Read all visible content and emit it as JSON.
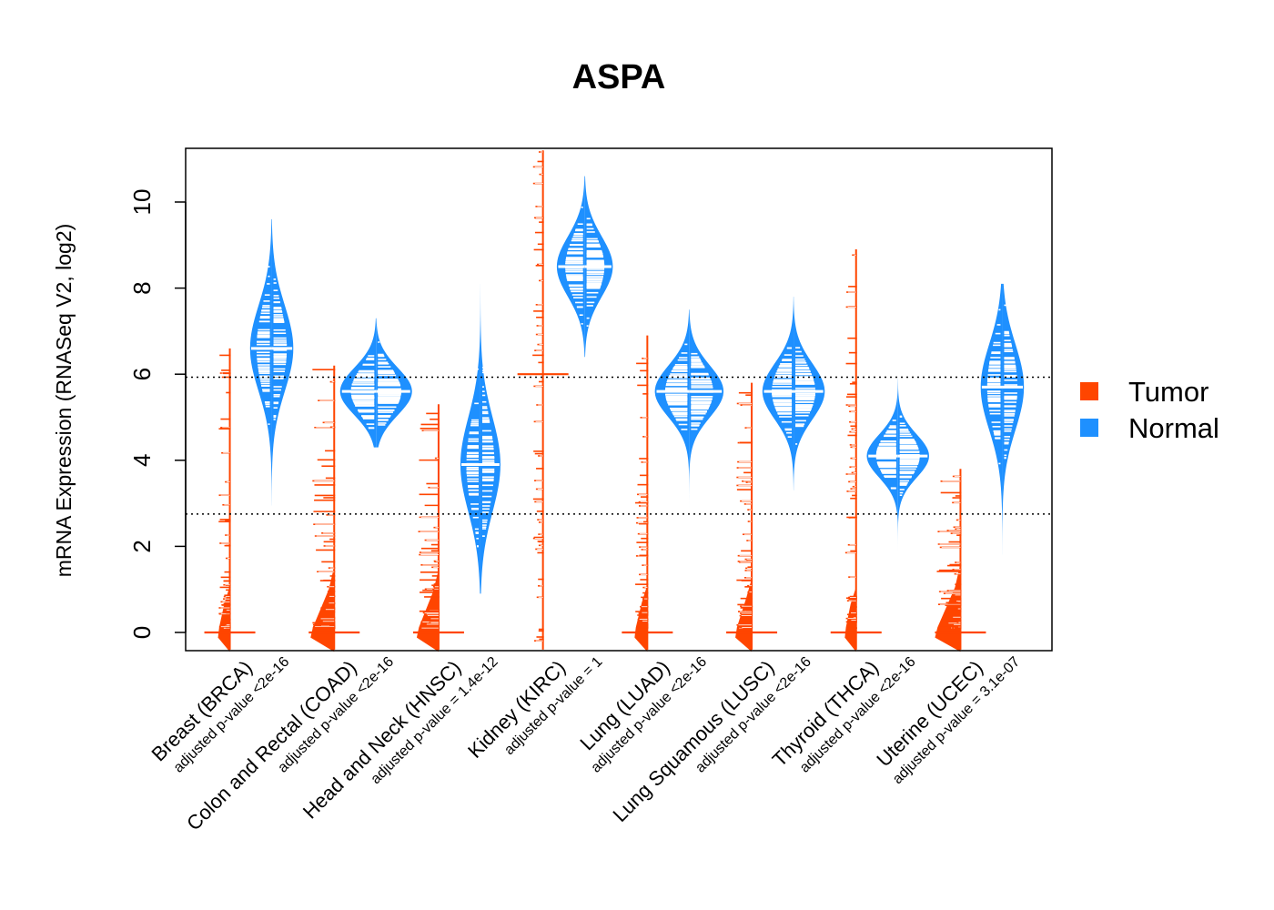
{
  "chart_data": {
    "type": "beanplot",
    "title": "ASPA",
    "xlabel": "",
    "ylabel": "mRNA Expression (RNASeq V2, log2)",
    "ylim": [
      -0.45,
      11.25
    ],
    "yticks": [
      "0",
      "2",
      "4",
      "6",
      "8",
      "10"
    ],
    "reference_lines": [
      5.93,
      2.75
    ],
    "legend_position": "right",
    "legend": [
      {
        "name": "Tumor",
        "color": "#FF4500"
      },
      {
        "name": "Normal",
        "color": "#1E90FF"
      }
    ],
    "categories": [
      {
        "label": "Breast (BRCA)",
        "pvalue": "adjusted p-value <2e-16",
        "tumor": {
          "min": -0.4,
          "max": 6.6,
          "median": 0.0,
          "zero_heavy": true,
          "spread": 0.25
        },
        "normal": {
          "min": 2.95,
          "max": 9.6,
          "median": 6.6,
          "sd": 1.0,
          "width": 0.45
        }
      },
      {
        "label": "Colon and Rectal (COAD)",
        "pvalue": "adjusted p-value <2e-16",
        "tumor": {
          "min": -0.4,
          "max": 6.2,
          "median": 0.0,
          "zero_heavy": true,
          "spread": 0.9
        },
        "normal": {
          "min": 4.3,
          "max": 7.3,
          "median": 5.6,
          "sd": 0.55,
          "width": 0.9
        }
      },
      {
        "label": "Head and Neck (HNSC)",
        "pvalue": "adjusted p-value = 1.4e-12",
        "tumor": {
          "min": -0.4,
          "max": 5.3,
          "median": 0.0,
          "zero_heavy": true,
          "spread": 0.8
        },
        "normal": {
          "min": 0.9,
          "max": 8.1,
          "median": 3.9,
          "sd": 1.1,
          "width": 0.4
        }
      },
      {
        "label": "Kidney (KIRC)",
        "pvalue": "adjusted p-value = 1",
        "tumor": {
          "min": -0.4,
          "max": 11.2,
          "median": 6.0,
          "zero_heavy": false,
          "spread": 0.22
        },
        "normal": {
          "min": 6.4,
          "max": 10.6,
          "median": 8.5,
          "sd": 0.7,
          "width": 0.65
        }
      },
      {
        "label": "Lung (LUAD)",
        "pvalue": "adjusted p-value <2e-16",
        "tumor": {
          "min": -0.4,
          "max": 6.9,
          "median": 0.0,
          "zero_heavy": true,
          "spread": 0.3
        },
        "normal": {
          "min": 2.9,
          "max": 7.5,
          "median": 5.6,
          "sd": 0.6,
          "width": 0.85
        }
      },
      {
        "label": "Lung Squamous (LUSC)",
        "pvalue": "adjusted p-value <2e-16",
        "tumor": {
          "min": -0.4,
          "max": 5.8,
          "median": 0.0,
          "zero_heavy": true,
          "spread": 0.5
        },
        "normal": {
          "min": 3.3,
          "max": 7.8,
          "median": 5.6,
          "sd": 0.65,
          "width": 0.75
        }
      },
      {
        "label": "Thyroid (THCA)",
        "pvalue": "adjusted p-value <2e-16",
        "tumor": {
          "min": -0.4,
          "max": 8.9,
          "median": 0.0,
          "zero_heavy": true,
          "spread": 0.22
        },
        "normal": {
          "min": 1.9,
          "max": 5.9,
          "median": 4.1,
          "sd": 0.5,
          "width": 0.75
        }
      },
      {
        "label": "Uterine (UCEC)",
        "pvalue": "adjusted p-value = 3.1e-07",
        "tumor": {
          "min": -0.4,
          "max": 3.8,
          "median": 0.0,
          "zero_heavy": true,
          "spread": 1.0
        },
        "normal": {
          "min": 1.8,
          "max": 8.1,
          "median": 5.7,
          "sd": 1.0,
          "width": 0.45
        }
      }
    ]
  }
}
